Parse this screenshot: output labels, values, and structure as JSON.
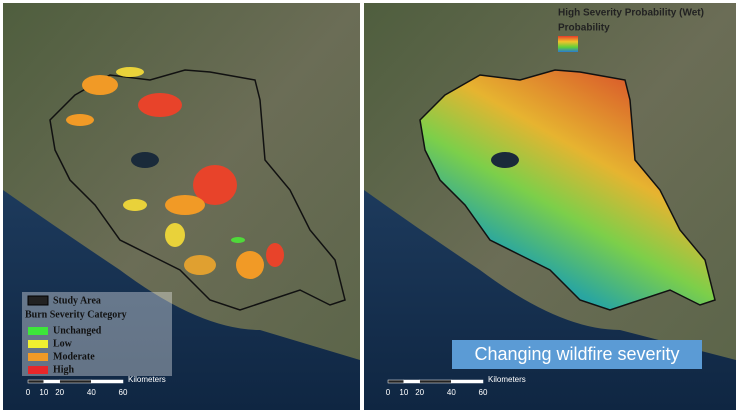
{
  "left_panel": {
    "legend": {
      "study_area": "Study Area",
      "title": "Burn Severity Category",
      "items": [
        "Unchanged",
        "Low",
        "Moderate",
        "High"
      ]
    },
    "scale": {
      "ticks": [
        0,
        10,
        20,
        40,
        60
      ],
      "unit": "Kilometers"
    }
  },
  "right_panel": {
    "legend": {
      "title": "High Severity Probability (Wet)",
      "subtitle": "Probability"
    },
    "scale": {
      "ticks": [
        0,
        10,
        20,
        40,
        60
      ],
      "unit": "Kilometers"
    }
  },
  "caption": "Changing wildfire severity"
}
